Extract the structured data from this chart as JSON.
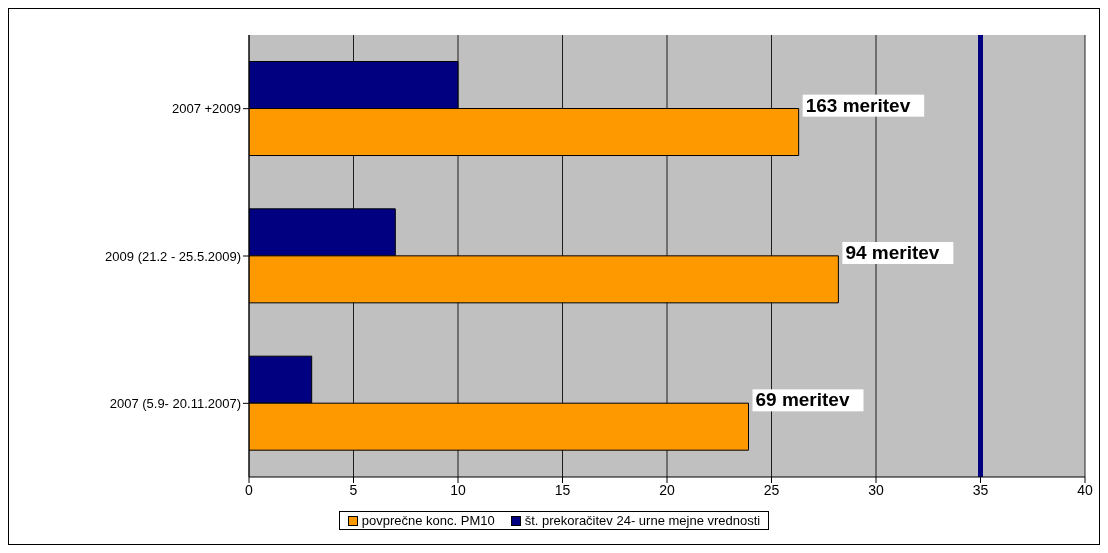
{
  "chart_data": {
    "type": "bar",
    "orientation": "horizontal",
    "categories": [
      "2007 +2009",
      "2009 (21.2 - 25.5.2009)",
      "2007 (5.9- 20.11.2007)"
    ],
    "series": [
      {
        "name": "povprečne konc. PM10",
        "color": "#ff9900",
        "values": [
          26.3,
          28.2,
          23.9
        ]
      },
      {
        "name": "št. prekoračitev 24- urne mejne vrednosti",
        "color": "#000080",
        "values": [
          10,
          7,
          3
        ]
      }
    ],
    "xlim": [
      0,
      40
    ],
    "xticks": [
      0,
      5,
      10,
      15,
      20,
      25,
      30,
      35,
      40
    ],
    "grid": "x",
    "legend": "bottom",
    "ref_lines": [
      {
        "axis": "x",
        "value": 35,
        "color": "#000080"
      }
    ],
    "annotations": [
      {
        "text": "163 meritev",
        "x": 26.3,
        "y": "2007 +2009"
      },
      {
        "text": "94 meritev",
        "x": 28.2,
        "y": "2009 (21.2 - 25.5.2009)"
      },
      {
        "text": "69 meritev",
        "x": 23.9,
        "y": "2007 (5.9- 20.11.2007)"
      }
    ]
  }
}
